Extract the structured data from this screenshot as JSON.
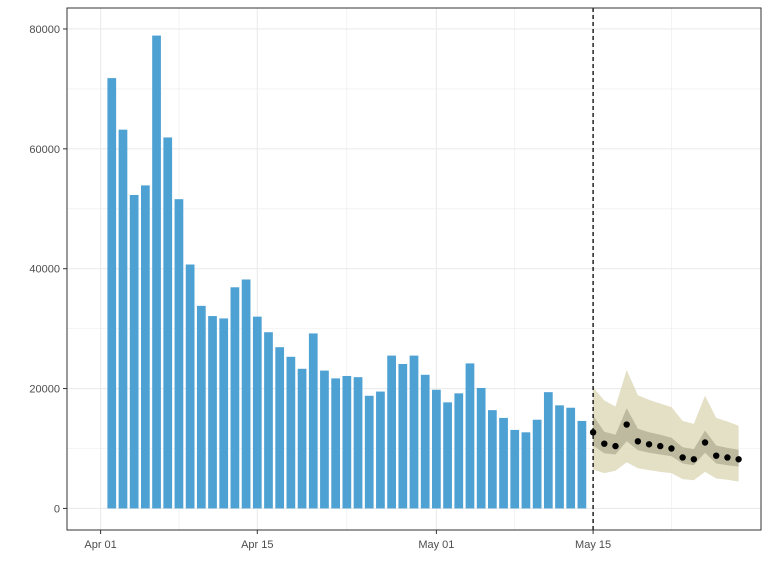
{
  "chart_data": {
    "type": "bar",
    "title": "",
    "xlabel": "",
    "ylabel": "",
    "ylim": [
      -3600,
      83500
    ],
    "xlim": [
      "2020-03-29",
      "2020-05-30"
    ],
    "grid": true,
    "y_ticks": [
      0,
      20000,
      40000,
      60000,
      80000
    ],
    "x_ticks": [
      {
        "date": "2020-04-01",
        "label": "Apr 01"
      },
      {
        "date": "2020-04-15",
        "label": "Apr 15"
      },
      {
        "date": "2020-05-01",
        "label": "May 01"
      },
      {
        "date": "2020-05-15",
        "label": "May 15"
      }
    ],
    "cutoff_date": "2020-05-15",
    "colors": {
      "bars": "#4ea1d3",
      "outer_band": "#d9d6b3",
      "inner_band": "#b0ad92",
      "points": "#000000",
      "cutoff_line": "#000000",
      "grid": "#ebebeb",
      "panel_border": "#333333"
    },
    "series": [
      {
        "kind": "bar",
        "x": [
          "2020-04-02",
          "2020-04-03",
          "2020-04-04",
          "2020-04-05",
          "2020-04-06",
          "2020-04-07",
          "2020-04-08",
          "2020-04-09",
          "2020-04-10",
          "2020-04-11",
          "2020-04-12",
          "2020-04-13",
          "2020-04-14",
          "2020-04-15",
          "2020-04-16",
          "2020-04-17",
          "2020-04-18",
          "2020-04-19",
          "2020-04-20",
          "2020-04-21",
          "2020-04-22",
          "2020-04-23",
          "2020-04-24",
          "2020-04-25",
          "2020-04-26",
          "2020-04-27",
          "2020-04-28",
          "2020-04-29",
          "2020-04-30",
          "2020-05-01",
          "2020-05-02",
          "2020-05-03",
          "2020-05-04",
          "2020-05-05",
          "2020-05-06",
          "2020-05-07",
          "2020-05-08",
          "2020-05-09",
          "2020-05-10",
          "2020-05-11",
          "2020-05-12",
          "2020-05-13",
          "2020-05-14"
        ],
        "values": [
          71800,
          63200,
          52300,
          53900,
          78900,
          61900,
          51600,
          40700,
          33800,
          32100,
          31700,
          36900,
          38200,
          32000,
          29400,
          26900,
          25300,
          23300,
          29200,
          23000,
          21700,
          22100,
          21900,
          18800,
          19500,
          25500,
          24100,
          25500,
          22300,
          19800,
          17700,
          19200,
          24200,
          20100,
          16400,
          15100,
          13100,
          12700,
          14800,
          19400,
          17200,
          16800,
          14600
        ]
      },
      {
        "kind": "forecast",
        "x": [
          "2020-05-15",
          "2020-05-16",
          "2020-05-17",
          "2020-05-18",
          "2020-05-19",
          "2020-05-20",
          "2020-05-21",
          "2020-05-22",
          "2020-05-23",
          "2020-05-24",
          "2020-05-25",
          "2020-05-26",
          "2020-05-27",
          "2020-05-28"
        ],
        "values": [
          12700,
          10800,
          10400,
          14000,
          11200,
          10700,
          10400,
          10000,
          8500,
          8200,
          11000,
          8800,
          8500,
          8200
        ],
        "inner_lower": [
          10500,
          9200,
          9000,
          11200,
          9700,
          9300,
          9000,
          8700,
          7500,
          7200,
          9300,
          7500,
          7200,
          7000
        ],
        "inner_upper": [
          15500,
          12800,
          12300,
          16700,
          13300,
          12700,
          12300,
          11800,
          10200,
          9900,
          13000,
          10500,
          10100,
          9800
        ],
        "outer_lower": [
          6500,
          5900,
          6300,
          7700,
          6700,
          6400,
          6100,
          5900,
          4900,
          4700,
          6100,
          5000,
          4800,
          4500
        ],
        "outer_upper": [
          20200,
          18000,
          17000,
          23100,
          18900,
          18100,
          17500,
          16900,
          14600,
          14100,
          18800,
          15100,
          14500,
          13800
        ]
      }
    ]
  }
}
